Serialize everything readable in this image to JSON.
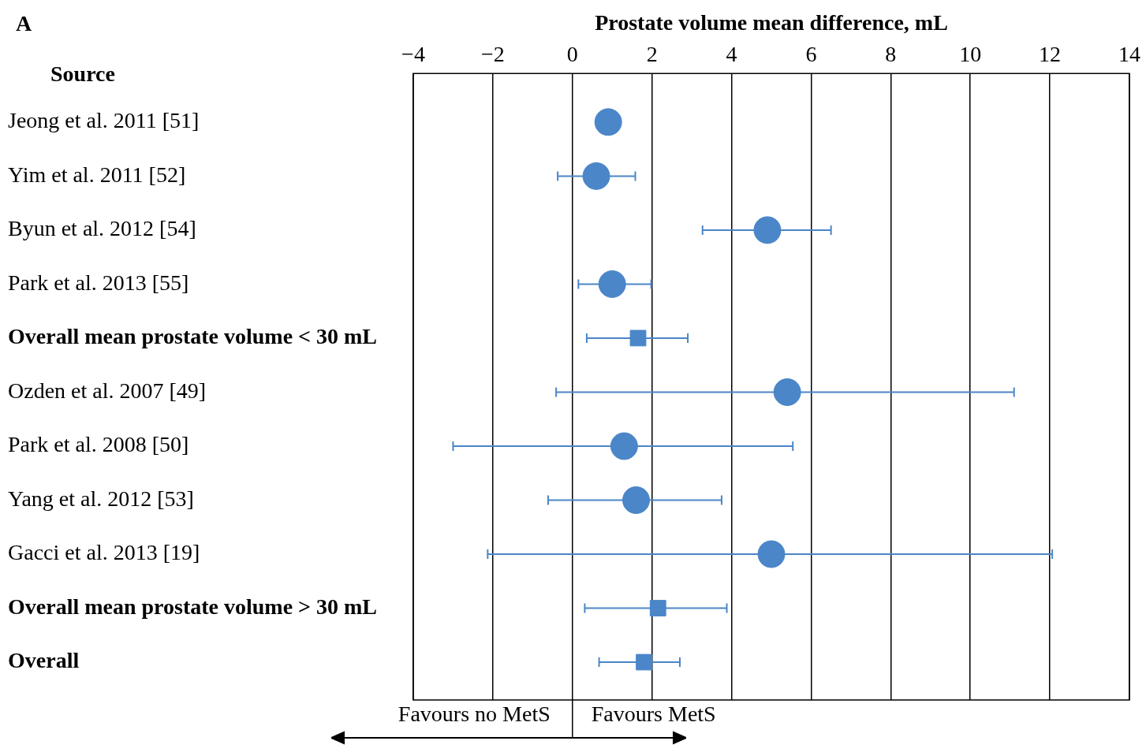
{
  "chart_data": {
    "type": "scatter",
    "orientation": "horizontal",
    "xlabel": "Prostate volume mean difference, mL",
    "categories": [
      "Jeong et al. 2011 [51]",
      "Yim et al. 2011 [52]",
      "Byun et al. 2012 [54]",
      "Park et al. 2013 [55]",
      "Overall mean prostate volume < 30 mL",
      "Ozden et al. 2007 [49]",
      "Park et al. 2008 [50]",
      "Yang et al. 2012 [53]",
      "Gacci et al. 2013 [19]",
      "Overall mean prostate volume > 30 mL",
      "Overall"
    ],
    "series": [
      {
        "color": "#4a86c8",
        "marker": "circle",
        "values": [
          0.9,
          0.6,
          4.9,
          1.0,
          null,
          5.4,
          1.3,
          1.6,
          5.0,
          null,
          null
        ],
        "errors": [
          null,
          [
            -0.37,
            1.58
          ],
          [
            3.27,
            6.5
          ],
          [
            0.15,
            1.98
          ],
          null,
          [
            -0.41,
            11.1
          ],
          [
            -3.0,
            5.54
          ],
          [
            -0.61,
            3.75
          ],
          [
            -2.13,
            12.06
          ],
          null,
          null
        ]
      },
      {
        "color": "#4a86c8",
        "marker": "square",
        "values": [
          null,
          null,
          null,
          null,
          1.65,
          null,
          null,
          null,
          null,
          2.15,
          1.8
        ],
        "errors": [
          null,
          null,
          null,
          null,
          [
            0.36,
            2.9
          ],
          null,
          null,
          null,
          null,
          [
            0.31,
            3.88
          ],
          [
            0.67,
            2.7
          ]
        ]
      }
    ],
    "xlim": [
      -4,
      14
    ],
    "xticks": [
      {
        "value": -4,
        "label": "−4"
      },
      {
        "value": -2,
        "label": "−2"
      },
      0,
      2,
      4,
      6,
      8,
      10,
      12,
      14
    ],
    "grid": "x",
    "legend": false,
    "annotations": [
      "A",
      "Source",
      "Favours no MetS",
      "Favours MetS"
    ]
  }
}
